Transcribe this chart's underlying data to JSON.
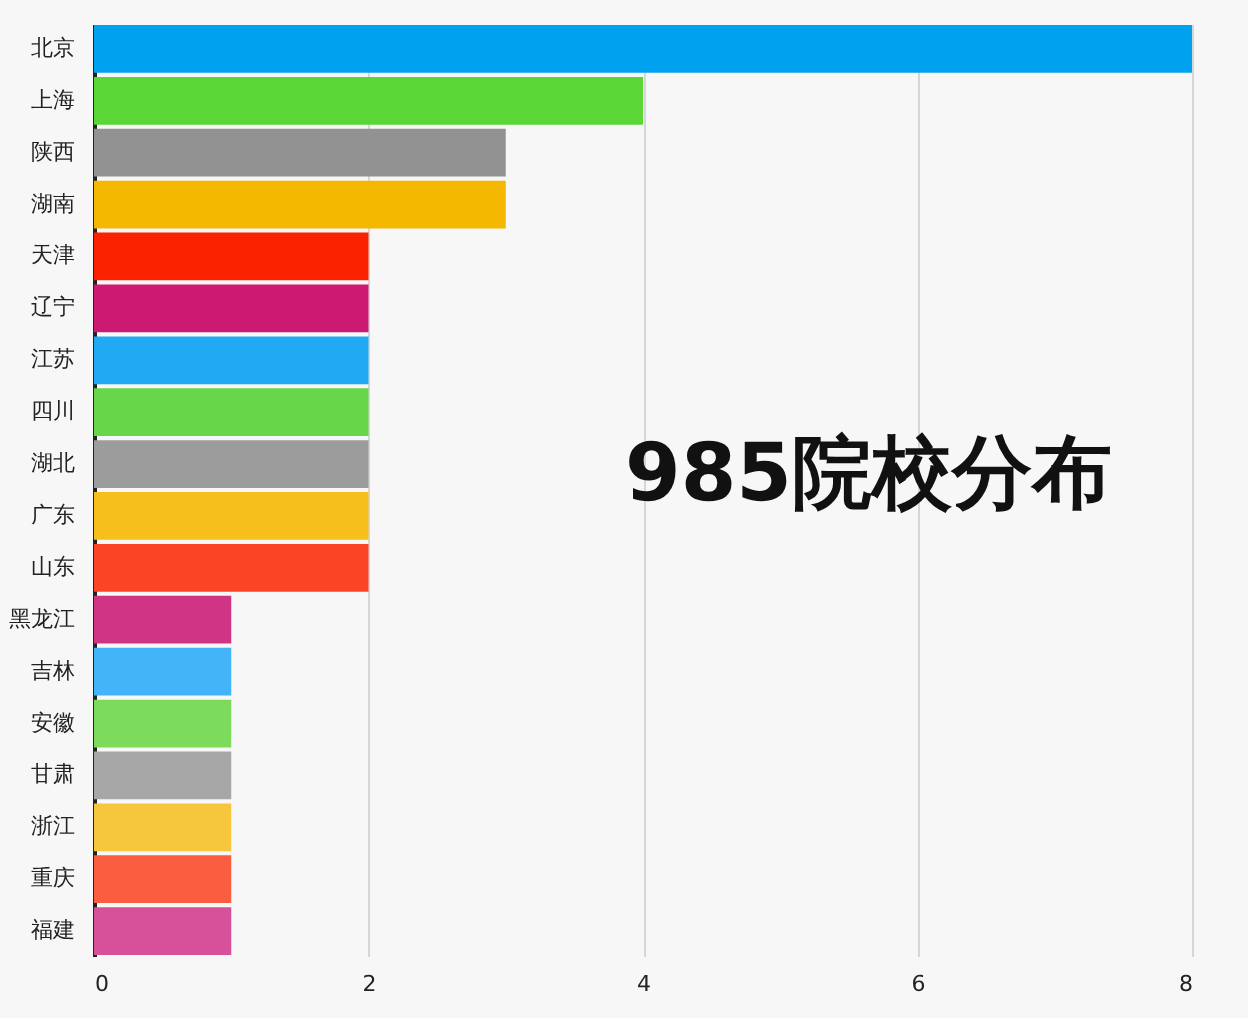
{
  "chart_data": {
    "type": "bar",
    "orientation": "horizontal",
    "title": "985院校分布",
    "categories": [
      "北京",
      "上海",
      "陕西",
      "湖南",
      "天津",
      "辽宁",
      "江苏",
      "四川",
      "湖北",
      "广东",
      "山东",
      "黑龙江",
      "吉林",
      "安徽",
      "甘肃",
      "浙江",
      "重庆",
      "福建"
    ],
    "values": [
      8,
      4,
      3,
      3,
      2,
      2,
      2,
      2,
      2,
      2,
      2,
      1,
      1,
      1,
      1,
      1,
      1,
      1
    ],
    "colors": [
      "#00a2f0",
      "#5ad637",
      "#929292",
      "#f4b800",
      "#fb2200",
      "#cc1a73",
      "#21a9f3",
      "#67d649",
      "#9c9c9c",
      "#f6bf1c",
      "#fa4425",
      "#d03484",
      "#42b4f7",
      "#7ddb5c",
      "#a7a7a7",
      "#f6c73d",
      "#fb5d41",
      "#d7519a"
    ],
    "xlim": [
      0,
      8
    ],
    "xticks": [
      0,
      2,
      4,
      6,
      8
    ],
    "grid": "x"
  }
}
